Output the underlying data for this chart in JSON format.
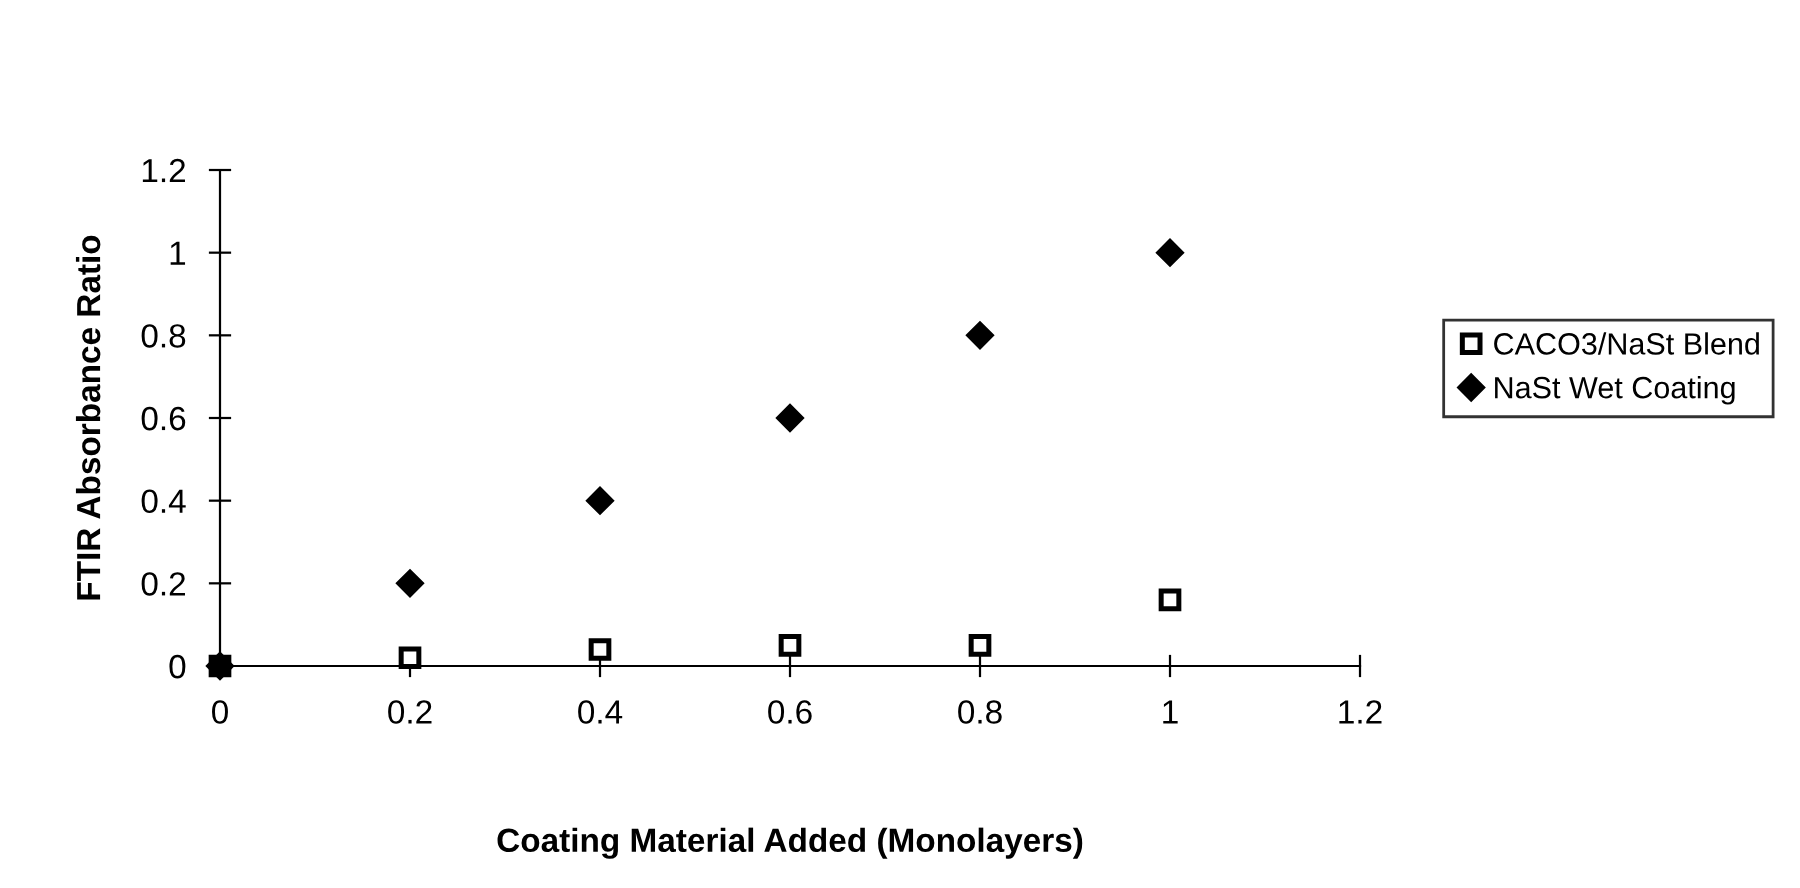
{
  "chart_data": {
    "type": "scatter",
    "xlabel": "Coating Material Added (Monolayers)",
    "ylabel": "FTIR Absorbance Ratio",
    "x": [
      0,
      0.2,
      0.4,
      0.6,
      0.8,
      1
    ],
    "series": [
      {
        "name": "CACO3/NaSt Blend",
        "color": "#000000",
        "marker": "square",
        "values": [
          0,
          0.02,
          0.04,
          0.05,
          0.05,
          0.16
        ]
      },
      {
        "name": "NaSt Wet Coating",
        "color": "#000000",
        "marker": "diamond",
        "values": [
          0,
          0.2,
          0.4,
          0.6,
          0.8,
          1
        ]
      }
    ],
    "xlim": [
      0,
      1.2
    ],
    "xticks": [
      0,
      0.2,
      0.4,
      0.6,
      0.8,
      1,
      1.2
    ],
    "ylim": [
      0,
      1.2
    ],
    "yticks": [
      0,
      0.2,
      0.4,
      0.6,
      0.8,
      1,
      1.2
    ],
    "grid": false,
    "legend": "right"
  }
}
